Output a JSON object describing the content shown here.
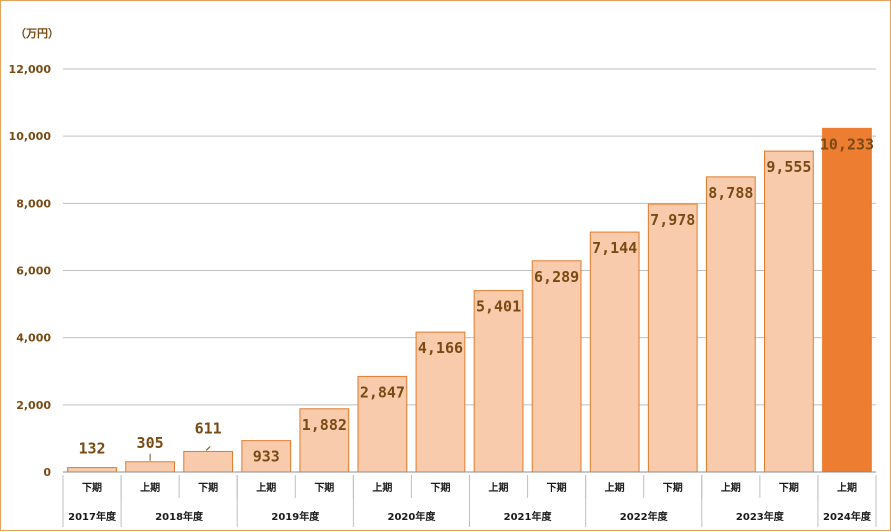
{
  "chart_data": {
    "type": "bar",
    "ylabel": "（万円）",
    "ylim": [
      0,
      12000
    ],
    "yticks": [
      0,
      2000,
      4000,
      6000,
      8000,
      10000,
      12000
    ],
    "ytick_labels": [
      "0",
      "2,000",
      "4,000",
      "6,000",
      "8,000",
      "10,000",
      "12,000"
    ],
    "categories": [
      {
        "year": "2017年度",
        "period": "下期"
      },
      {
        "year": "2018年度",
        "period": "上期"
      },
      {
        "year": "2018年度",
        "period": "下期"
      },
      {
        "year": "2019年度",
        "period": "上期"
      },
      {
        "year": "2019年度",
        "period": "下期"
      },
      {
        "year": "2020年度",
        "period": "上期"
      },
      {
        "year": "2020年度",
        "period": "下期"
      },
      {
        "year": "2021年度",
        "period": "上期"
      },
      {
        "year": "2021年度",
        "period": "下期"
      },
      {
        "year": "2022年度",
        "period": "上期"
      },
      {
        "year": "2022年度",
        "period": "下期"
      },
      {
        "year": "2023年度",
        "period": "上期"
      },
      {
        "year": "2023年度",
        "period": "下期"
      },
      {
        "year": "2024年度",
        "period": "上期"
      }
    ],
    "year_groups": [
      {
        "label": "2017年度",
        "count": 1
      },
      {
        "label": "2018年度",
        "count": 2
      },
      {
        "label": "2019年度",
        "count": 2
      },
      {
        "label": "2020年度",
        "count": 2
      },
      {
        "label": "2021年度",
        "count": 2
      },
      {
        "label": "2022年度",
        "count": 2
      },
      {
        "label": "2023年度",
        "count": 2
      },
      {
        "label": "2024年度",
        "count": 1
      }
    ],
    "values": [
      132,
      305,
      611,
      933,
      1882,
      2847,
      4166,
      5401,
      6289,
      7144,
      7978,
      8788,
      9555,
      10233
    ],
    "value_labels": [
      "132",
      "305",
      "611",
      "933",
      "1,882",
      "2,847",
      "4,166",
      "5,401",
      "6,289",
      "7,144",
      "7,978",
      "8,788",
      "9,555",
      "10,233"
    ],
    "colors": {
      "bar": "#f8cbad",
      "bar_stroke": "#e07b2c",
      "highlight": "#ed7d31",
      "gridline": "#bfbfbf",
      "axis_text": "#7a4a14"
    },
    "highlight_index": 13,
    "grid": true,
    "legend": "none"
  }
}
